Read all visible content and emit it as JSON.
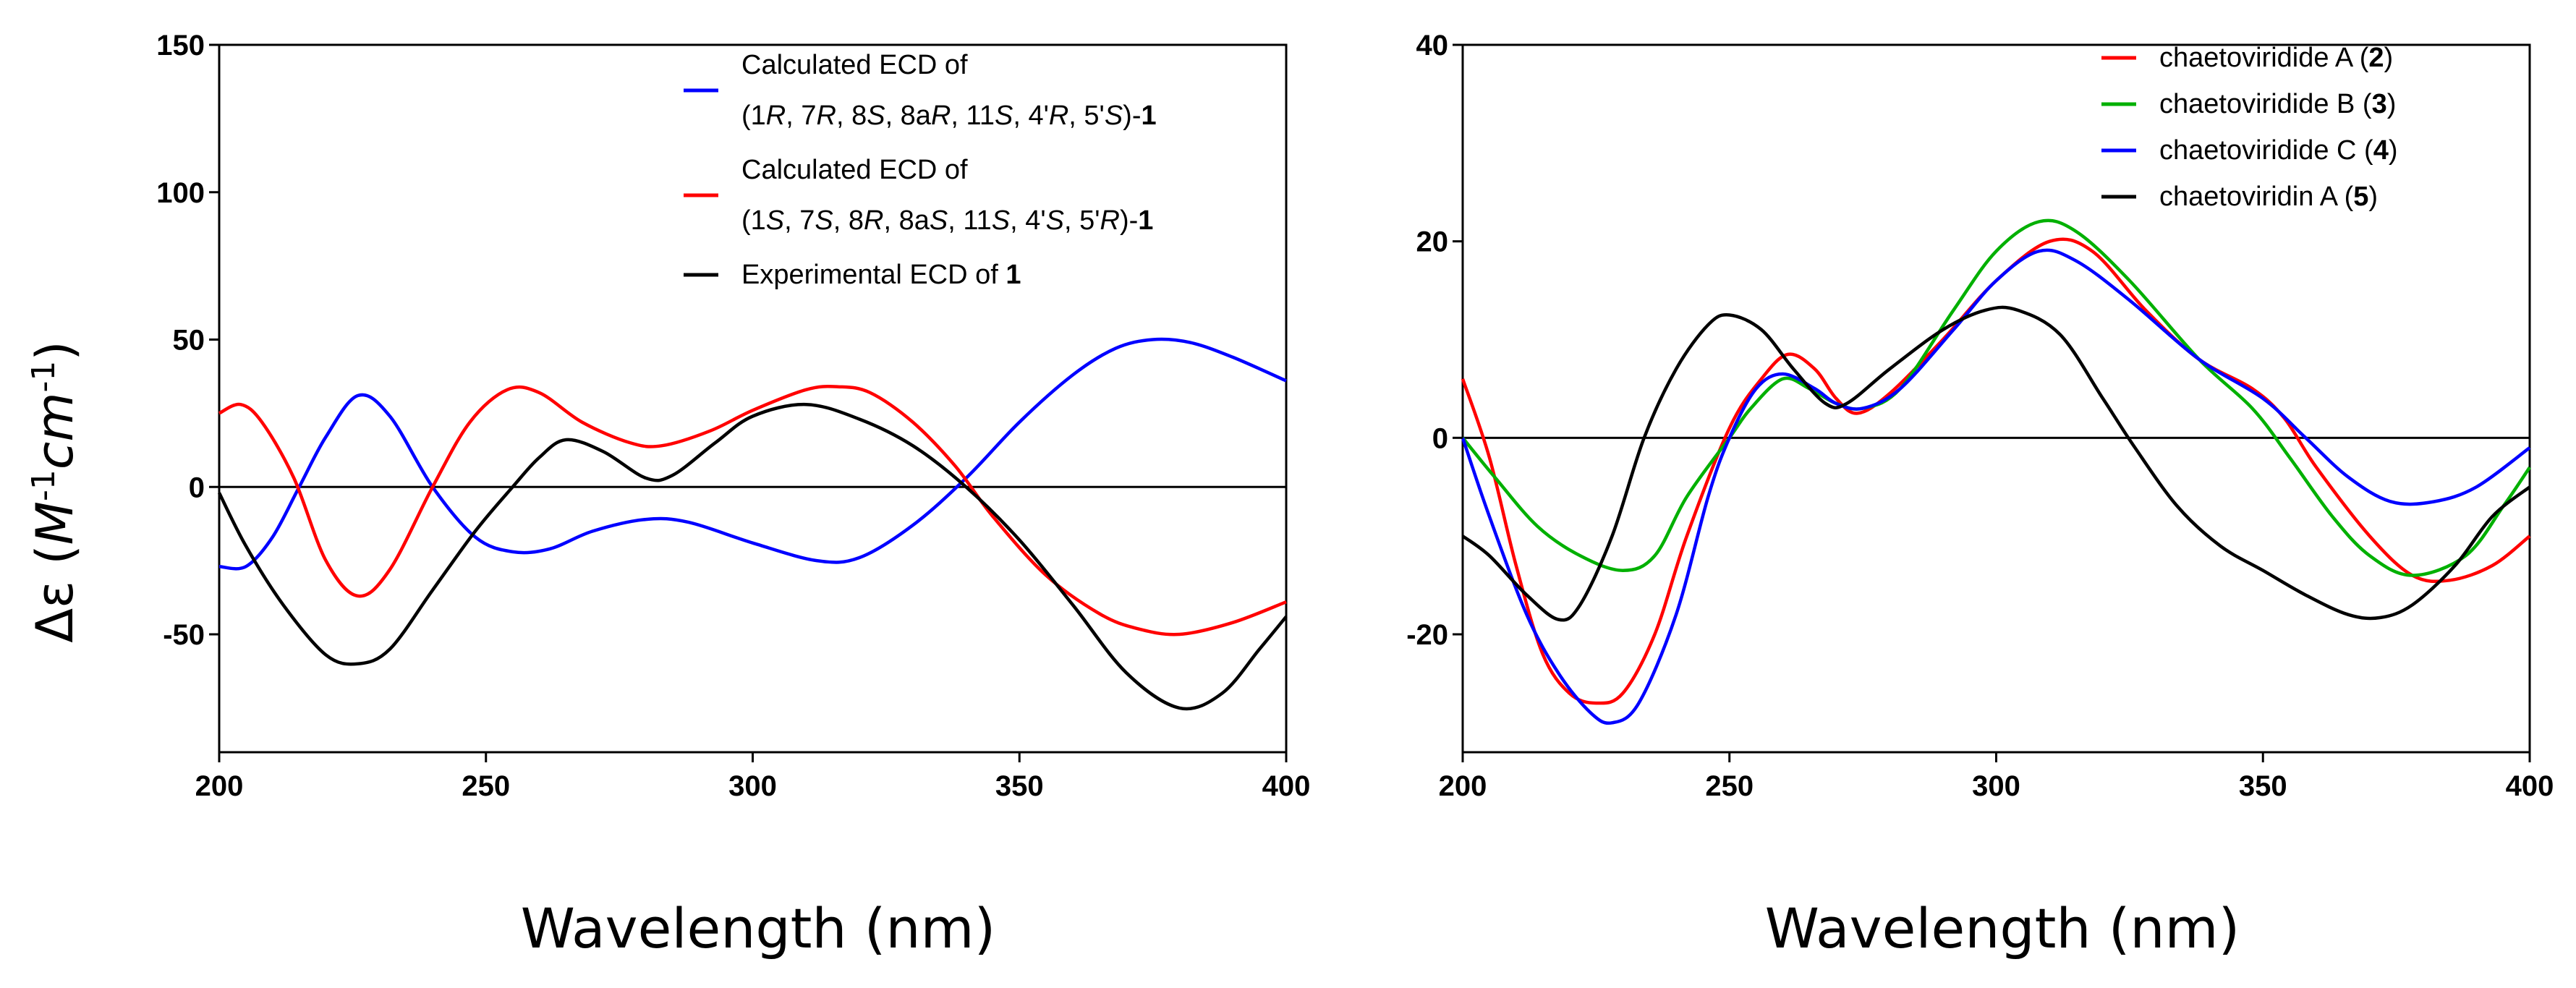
{
  "chart_data": [
    {
      "type": "line",
      "xlabel": "Wavelength (nm)",
      "ylabel": {
        "prefix": "Δε (",
        "m": "M",
        "exp1": "-1",
        "cm": "cm",
        "exp2": "-1",
        "suffix": ")"
      },
      "xlim": [
        200,
        400
      ],
      "ylim": [
        -90,
        150
      ],
      "xticks": [
        200,
        250,
        300,
        350,
        400
      ],
      "yticks": [
        -50,
        0,
        50,
        100,
        150
      ],
      "series": [
        {
          "name": "Calculated ECD of (1R, 7R, 8S, 8aR, 11S, 4'R, 5'S)-1",
          "color": "#0000ff",
          "legend_lines": [
            [
              {
                "t": "Calculated ECD of"
              }
            ],
            [
              {
                "t": "(1"
              },
              {
                "t": "R",
                "s": "i"
              },
              {
                "t": ", 7"
              },
              {
                "t": "R",
                "s": "i"
              },
              {
                "t": ", 8"
              },
              {
                "t": "S",
                "s": "i"
              },
              {
                "t": ", 8a"
              },
              {
                "t": "R",
                "s": "i"
              },
              {
                "t": ", 11"
              },
              {
                "t": "S",
                "s": "i"
              },
              {
                "t": ", 4'"
              },
              {
                "t": "R",
                "s": "i"
              },
              {
                "t": ", 5'"
              },
              {
                "t": "S",
                "s": "i"
              },
              {
                "t": ")-"
              },
              {
                "t": "1",
                "s": "b"
              }
            ]
          ],
          "points": [
            [
              200,
              -27
            ],
            [
              205,
              -27
            ],
            [
              210,
              -17
            ],
            [
              215,
              0
            ],
            [
              220,
              17
            ],
            [
              226,
              31
            ],
            [
              232,
              24
            ],
            [
              240,
              0
            ],
            [
              248,
              -17
            ],
            [
              255,
              -22
            ],
            [
              262,
              -21
            ],
            [
              270,
              -15
            ],
            [
              280,
              -11
            ],
            [
              288,
              -12
            ],
            [
              300,
              -19
            ],
            [
              312,
              -25
            ],
            [
              320,
              -24
            ],
            [
              330,
              -13
            ],
            [
              340,
              3
            ],
            [
              350,
              22
            ],
            [
              360,
              38
            ],
            [
              368,
              47
            ],
            [
              375,
              50
            ],
            [
              382,
              49
            ],
            [
              390,
              44
            ],
            [
              400,
              36
            ]
          ]
        },
        {
          "name": "Calculated ECD of (1S, 7S, 8R, 8aS, 11S, 4'S, 5'R)-1",
          "color": "#ff0000",
          "legend_lines": [
            [
              {
                "t": "Calculated ECD of"
              }
            ],
            [
              {
                "t": "(1"
              },
              {
                "t": "S",
                "s": "i"
              },
              {
                "t": ", 7"
              },
              {
                "t": "S",
                "s": "i"
              },
              {
                "t": ", 8"
              },
              {
                "t": "R",
                "s": "i"
              },
              {
                "t": ", 8a"
              },
              {
                "t": "S",
                "s": "i"
              },
              {
                "t": ", 11"
              },
              {
                "t": "S",
                "s": "i"
              },
              {
                "t": ", 4'"
              },
              {
                "t": "S",
                "s": "i"
              },
              {
                "t": ", 5'"
              },
              {
                "t": "R",
                "s": "i"
              },
              {
                "t": ")-"
              },
              {
                "t": "1",
                "s": "b"
              }
            ]
          ],
          "points": [
            [
              200,
              25
            ],
            [
              204,
              28
            ],
            [
              208,
              22
            ],
            [
              214,
              3
            ],
            [
              220,
              -25
            ],
            [
              226,
              -37
            ],
            [
              232,
              -28
            ],
            [
              240,
              0
            ],
            [
              247,
              22
            ],
            [
              254,
              33
            ],
            [
              260,
              32
            ],
            [
              268,
              22
            ],
            [
              277,
              15
            ],
            [
              283,
              14
            ],
            [
              292,
              19
            ],
            [
              300,
              26
            ],
            [
              310,
              33
            ],
            [
              316,
              34
            ],
            [
              322,
              32
            ],
            [
              330,
              22
            ],
            [
              338,
              7
            ],
            [
              345,
              -10
            ],
            [
              355,
              -30
            ],
            [
              365,
              -43
            ],
            [
              372,
              -48
            ],
            [
              380,
              -50
            ],
            [
              390,
              -46
            ],
            [
              400,
              -39
            ]
          ]
        },
        {
          "name": "Experimental ECD of 1",
          "color": "#000000",
          "legend_lines": [
            [
              {
                "t": "Experimental ECD of "
              },
              {
                "t": "1",
                "s": "b"
              }
            ]
          ],
          "points": [
            [
              200,
              -2
            ],
            [
              205,
              -20
            ],
            [
              212,
              -40
            ],
            [
              220,
              -57
            ],
            [
              226,
              -60
            ],
            [
              232,
              -55
            ],
            [
              240,
              -35
            ],
            [
              248,
              -15
            ],
            [
              255,
              0
            ],
            [
              260,
              10
            ],
            [
              265,
              16
            ],
            [
              272,
              12
            ],
            [
              280,
              3
            ],
            [
              285,
              4
            ],
            [
              293,
              15
            ],
            [
              300,
              24
            ],
            [
              310,
              28
            ],
            [
              320,
              23
            ],
            [
              330,
              14
            ],
            [
              340,
              0
            ],
            [
              350,
              -18
            ],
            [
              360,
              -40
            ],
            [
              370,
              -63
            ],
            [
              380,
              -75
            ],
            [
              388,
              -70
            ],
            [
              395,
              -55
            ],
            [
              400,
              -44
            ]
          ]
        }
      ]
    },
    {
      "type": "line",
      "xlabel": "Wavelength (nm)",
      "ylabel": null,
      "xlim": [
        200,
        400
      ],
      "ylim": [
        -32,
        40
      ],
      "xticks": [
        200,
        250,
        300,
        350,
        400
      ],
      "yticks": [
        -20,
        0,
        20,
        40
      ],
      "series": [
        {
          "name": "chaetoviridide A (2)",
          "color": "#ff0000",
          "legend_lines": [
            [
              {
                "t": "chaetoviridide A ("
              },
              {
                "t": "2",
                "s": "b"
              },
              {
                "t": ")"
              }
            ]
          ],
          "points": [
            [
              200,
              6
            ],
            [
              205,
              -2
            ],
            [
              210,
              -13
            ],
            [
              215,
              -22
            ],
            [
              220,
              -26
            ],
            [
              225,
              -27
            ],
            [
              230,
              -26
            ],
            [
              236,
              -20
            ],
            [
              242,
              -10
            ],
            [
              250,
              1
            ],
            [
              256,
              6
            ],
            [
              261,
              8.5
            ],
            [
              266,
              7
            ],
            [
              270,
              4
            ],
            [
              274,
              2.5
            ],
            [
              280,
              4.5
            ],
            [
              290,
              10
            ],
            [
              300,
              16
            ],
            [
              310,
              20
            ],
            [
              318,
              19
            ],
            [
              328,
              13
            ],
            [
              338,
              8
            ],
            [
              348,
              5
            ],
            [
              354,
              2
            ],
            [
              360,
              -3
            ],
            [
              370,
              -10
            ],
            [
              378,
              -14
            ],
            [
              385,
              -14.5
            ],
            [
              393,
              -13
            ],
            [
              400,
              -10
            ]
          ]
        },
        {
          "name": "chaetoviridide B (3)",
          "color": "#00b000",
          "legend_lines": [
            [
              {
                "t": "chaetoviridide B ("
              },
              {
                "t": "3",
                "s": "b"
              },
              {
                "t": ")"
              }
            ]
          ],
          "points": [
            [
              200,
              0
            ],
            [
              206,
              -4
            ],
            [
              214,
              -9
            ],
            [
              222,
              -12
            ],
            [
              230,
              -13.5
            ],
            [
              236,
              -12
            ],
            [
              242,
              -6
            ],
            [
              250,
              0
            ],
            [
              254,
              3
            ],
            [
              260,
              6
            ],
            [
              265,
              5
            ],
            [
              270,
              3.5
            ],
            [
              275,
              3
            ],
            [
              282,
              5
            ],
            [
              292,
              13
            ],
            [
              300,
              19
            ],
            [
              308,
              22
            ],
            [
              315,
              21
            ],
            [
              325,
              16
            ],
            [
              338,
              8
            ],
            [
              348,
              3
            ],
            [
              355,
              -2
            ],
            [
              363,
              -8
            ],
            [
              370,
              -12
            ],
            [
              378,
              -14
            ],
            [
              388,
              -12
            ],
            [
              395,
              -7
            ],
            [
              400,
              -3
            ]
          ]
        },
        {
          "name": "chaetoviridide C (4)",
          "color": "#0000ff",
          "legend_lines": [
            [
              {
                "t": "chaetoviridide C ("
              },
              {
                "t": "4",
                "s": "b"
              },
              {
                "t": ")"
              }
            ]
          ],
          "points": [
            [
              200,
              0
            ],
            [
              205,
              -8
            ],
            [
              212,
              -18
            ],
            [
              218,
              -24
            ],
            [
              224,
              -28
            ],
            [
              228,
              -29
            ],
            [
              233,
              -27
            ],
            [
              240,
              -18
            ],
            [
              246,
              -6
            ],
            [
              250,
              0
            ],
            [
              255,
              5
            ],
            [
              260,
              6.5
            ],
            [
              266,
              5
            ],
            [
              270,
              3.5
            ],
            [
              275,
              3
            ],
            [
              282,
              5
            ],
            [
              292,
              11
            ],
            [
              300,
              16
            ],
            [
              308,
              19
            ],
            [
              315,
              18
            ],
            [
              325,
              14
            ],
            [
              338,
              8
            ],
            [
              350,
              4
            ],
            [
              358,
              0
            ],
            [
              366,
              -4
            ],
            [
              374,
              -6.5
            ],
            [
              382,
              -6.5
            ],
            [
              390,
              -5
            ],
            [
              400,
              -1
            ]
          ]
        },
        {
          "name": "chaetoviridin A (5)",
          "color": "#000000",
          "legend_lines": [
            [
              {
                "t": "chaetoviridin A ("
              },
              {
                "t": "5",
                "s": "b"
              },
              {
                "t": ")"
              }
            ]
          ],
          "points": [
            [
              200,
              -10
            ],
            [
              205,
              -12
            ],
            [
              212,
              -16
            ],
            [
              218,
              -18.5
            ],
            [
              222,
              -17
            ],
            [
              228,
              -10
            ],
            [
              234,
              0
            ],
            [
              240,
              7
            ],
            [
              246,
              11.5
            ],
            [
              250,
              12.5
            ],
            [
              256,
              11
            ],
            [
              262,
              7
            ],
            [
              268,
              3.5
            ],
            [
              272,
              3.5
            ],
            [
              280,
              7
            ],
            [
              290,
              11
            ],
            [
              298,
              13
            ],
            [
              304,
              13
            ],
            [
              312,
              10.5
            ],
            [
              320,
              4
            ],
            [
              326,
              -1
            ],
            [
              334,
              -7
            ],
            [
              342,
              -11
            ],
            [
              350,
              -13.5
            ],
            [
              358,
              -16
            ],
            [
              366,
              -18
            ],
            [
              372,
              -18.3
            ],
            [
              378,
              -17
            ],
            [
              386,
              -13
            ],
            [
              393,
              -8
            ],
            [
              400,
              -5
            ]
          ]
        }
      ]
    }
  ]
}
